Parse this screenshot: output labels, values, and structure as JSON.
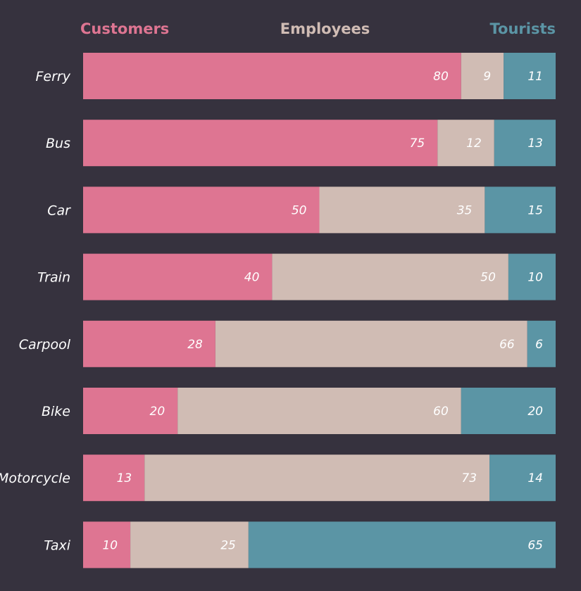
{
  "chart_data": {
    "type": "bar",
    "orientation": "horizontal",
    "stacked": true,
    "normalized": true,
    "title": "",
    "xlabel": "",
    "ylabel": "",
    "xlim": [
      0,
      100
    ],
    "grid": false,
    "legend_position": "top",
    "categories": [
      "Ferry",
      "Bus",
      "Car",
      "Train",
      "Carpool",
      "Bike",
      "Motorcycle",
      "Taxi"
    ],
    "series": [
      {
        "name": "Customers",
        "color": "#de7592",
        "values": [
          80,
          75,
          50,
          40,
          28,
          20,
          13,
          10
        ]
      },
      {
        "name": "Employees",
        "color": "#d0bcb4",
        "values": [
          9,
          12,
          35,
          50,
          66,
          60,
          73,
          25
        ]
      },
      {
        "name": "Tourists",
        "color": "#5b95a5",
        "values": [
          11,
          13,
          15,
          10,
          6,
          20,
          14,
          65
        ]
      }
    ],
    "background": "#36323e",
    "label_color": "#ffffff"
  }
}
